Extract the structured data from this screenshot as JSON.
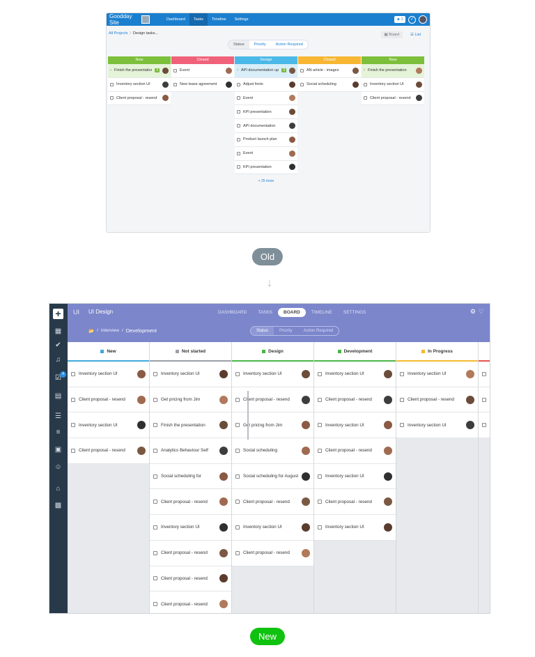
{
  "old": {
    "brand": "Goodday Site",
    "nav": [
      "Dashboard",
      "Tasks",
      "Timeline",
      "Settings"
    ],
    "nav_active": "Tasks",
    "user_btn": "2",
    "breadcrumb": {
      "root": "All Projects",
      "current": "Design tasks..."
    },
    "views": {
      "board": "Board",
      "list": "List"
    },
    "tabs": [
      "Status",
      "Priority",
      "Action Required"
    ],
    "columns": [
      {
        "name": "New",
        "color": "#7cbf3b",
        "cards": [
          {
            "title": "Finish the presentation",
            "count": "3",
            "highlight": "green"
          },
          {
            "title": "Inventory section UI"
          },
          {
            "title": "Client proposal - resend"
          }
        ]
      },
      {
        "name": "Closed",
        "color": "#f0627a",
        "cards": [
          {
            "title": "Event"
          },
          {
            "title": "New lease agreement"
          }
        ]
      },
      {
        "name": "Design",
        "color": "#4ab8e8",
        "cards": [
          {
            "title": "API documentation update",
            "count": "3",
            "highlight": "blue"
          },
          {
            "title": "Adjust fonts"
          },
          {
            "title": "Event"
          },
          {
            "title": "KPI presentation"
          },
          {
            "title": "API documentation"
          },
          {
            "title": "Product launch plan"
          },
          {
            "title": "Event"
          },
          {
            "title": "KPI presentation"
          }
        ],
        "more": "+ 25 more"
      },
      {
        "name": "Closed",
        "color": "#f7b733",
        "cards": [
          {
            "title": "AN article - images"
          },
          {
            "title": "Social scheduling"
          }
        ]
      },
      {
        "name": "New",
        "color": "#7cbf3b",
        "cards": [
          {
            "title": "Finish the presentation",
            "highlight": "green"
          },
          {
            "title": "Inventory section UI"
          },
          {
            "title": "Client proposal - resend"
          }
        ]
      }
    ]
  },
  "labels": {
    "old": "Old",
    "new": "New"
  },
  "new": {
    "app_mark": "UI",
    "project_title": "UI Design",
    "nav": [
      "DASHBOARD",
      "TASKS",
      "BOARD",
      "TIMELINE",
      "SETTINGS"
    ],
    "nav_active": "BOARD",
    "breadcrumb": {
      "sep1": "/",
      "mid": "Interview",
      "sep2": "/",
      "current": "Development"
    },
    "tabs": [
      "Status",
      "Priority",
      "Action Required"
    ],
    "sidebar_badge": "4",
    "columns": [
      {
        "name": "New",
        "color": "#3fa9dc",
        "cards": [
          "Inventory section UI",
          "Client proposal - resend",
          "Inventory section UI",
          "Client proposal - resend"
        ]
      },
      {
        "name": "Not started",
        "color": "#9aa1a8",
        "cards": [
          "Inventory section UI",
          "Get pricing from Jim",
          "Finish the presentation",
          "Analytics Behaviour Self",
          "Social scheduling for",
          "Client proposal - resend",
          "Inventory section UI",
          "Client proposal - resend",
          "Client proposal - resend",
          "Client proposal - resend"
        ]
      },
      {
        "name": "Design",
        "color": "#49b649",
        "cards": [
          "Inventory section UI",
          "Client proposal - resend",
          "Get pricing from Jim",
          "Social scheduling",
          "Social scheduling for August",
          "Client proposal - resend",
          "Inventory section UI",
          "Client proposal - resend"
        ]
      },
      {
        "name": "Development",
        "color": "#49b649",
        "cards": [
          "Inventory section UI",
          "Client proposal - resend",
          "Inventory section UI",
          "Client proposal - resend",
          "Inventory section UI",
          "Client proposal - resend",
          "Inventory section UI"
        ]
      },
      {
        "name": "In Progress",
        "color": "#f5b82e",
        "cards": [
          "Inventory section UI",
          "Client proposal - resend",
          "Inventory section UI"
        ]
      },
      {
        "name": "",
        "color": "#e8534f",
        "cards": [
          "",
          "",
          ""
        ]
      }
    ]
  }
}
